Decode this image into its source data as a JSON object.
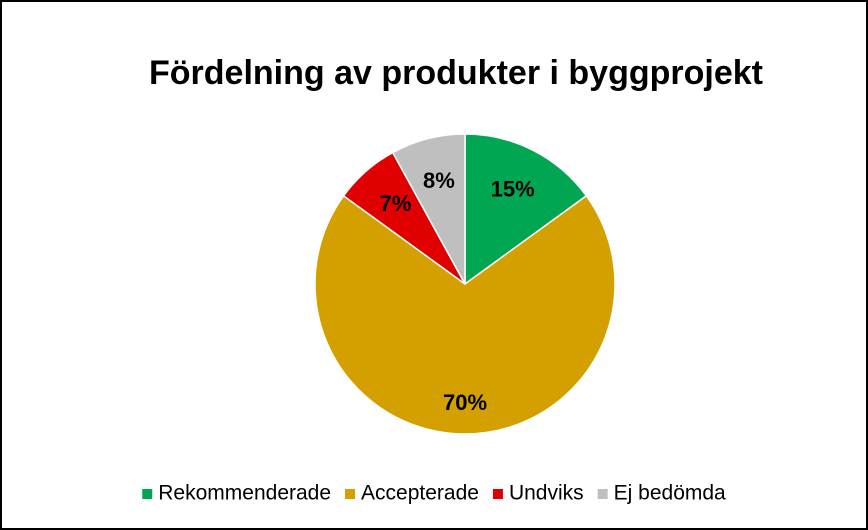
{
  "chart_data": {
    "type": "pie",
    "title": "Fördelning av produkter i byggprojekt",
    "categories": [
      "Rekommenderade",
      "Accepterade",
      "Undviks",
      "Ej bedömda"
    ],
    "values": [
      15,
      70,
      7,
      8
    ],
    "value_labels": [
      "15%",
      "70%",
      "7%",
      "8%"
    ],
    "colors": [
      "#00a651",
      "#d4a000",
      "#e00000",
      "#bfbfbf"
    ],
    "legend": "bottom"
  }
}
